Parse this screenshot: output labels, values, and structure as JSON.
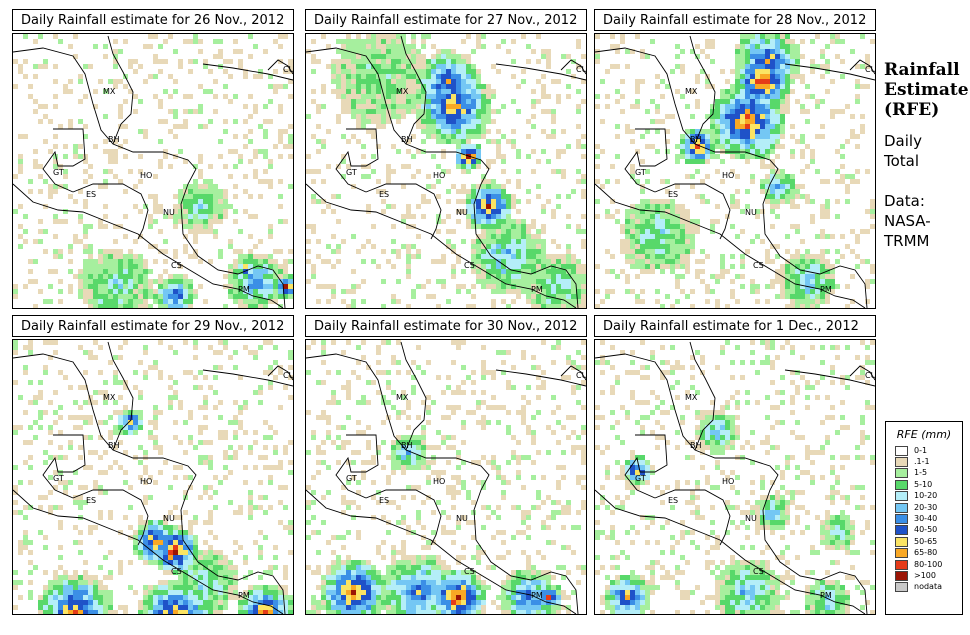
{
  "panels": [
    {
      "title": "Daily Rainfall estimate for  26 Nov., 2012",
      "seed": 26
    },
    {
      "title": "Daily Rainfall estimate for  27 Nov., 2012",
      "seed": 27
    },
    {
      "title": "Daily Rainfall estimate for  28 Nov., 2012",
      "seed": 28
    },
    {
      "title": "Daily Rainfall estimate for  29 Nov., 2012",
      "seed": 29
    },
    {
      "title": "Daily Rainfall estimate for  30 Nov., 2012",
      "seed": 30
    },
    {
      "title": "Daily Rainfall estimate for  1 Dec., 2012",
      "seed": 1
    }
  ],
  "map_labels": [
    "MX",
    "CU",
    "BH",
    "GT",
    "HO",
    "ES",
    "NU",
    "CS",
    "PM"
  ],
  "side": {
    "title_line1": "Rainfall",
    "title_line2": "Estimate",
    "title_line3": "(RFE)",
    "sub_line1": "Daily",
    "sub_line2": "Total",
    "source_line1": "Data:",
    "source_line2": "NASA-",
    "source_line3": "TRMM"
  },
  "legend": {
    "title": "RFE (mm)",
    "items": [
      {
        "label": "0-1",
        "color": "#ffffff"
      },
      {
        "label": ".1-1",
        "color": "#e8d9b8"
      },
      {
        "label": "1-5",
        "color": "#a6ef9e"
      },
      {
        "label": "5-10",
        "color": "#58d86a"
      },
      {
        "label": "10-20",
        "color": "#b4eef8"
      },
      {
        "label": "20-30",
        "color": "#74c7f4"
      },
      {
        "label": "30-40",
        "color": "#3b8fe6"
      },
      {
        "label": "40-50",
        "color": "#1f52c8"
      },
      {
        "label": "50-65",
        "color": "#fbe464"
      },
      {
        "label": "65-80",
        "color": "#f9a825"
      },
      {
        "label": "80-100",
        "color": "#e53b19"
      },
      {
        "label": ">100",
        "color": "#9b1405"
      },
      {
        "label": "nodata",
        "color": "#c9c9c9"
      }
    ]
  }
}
